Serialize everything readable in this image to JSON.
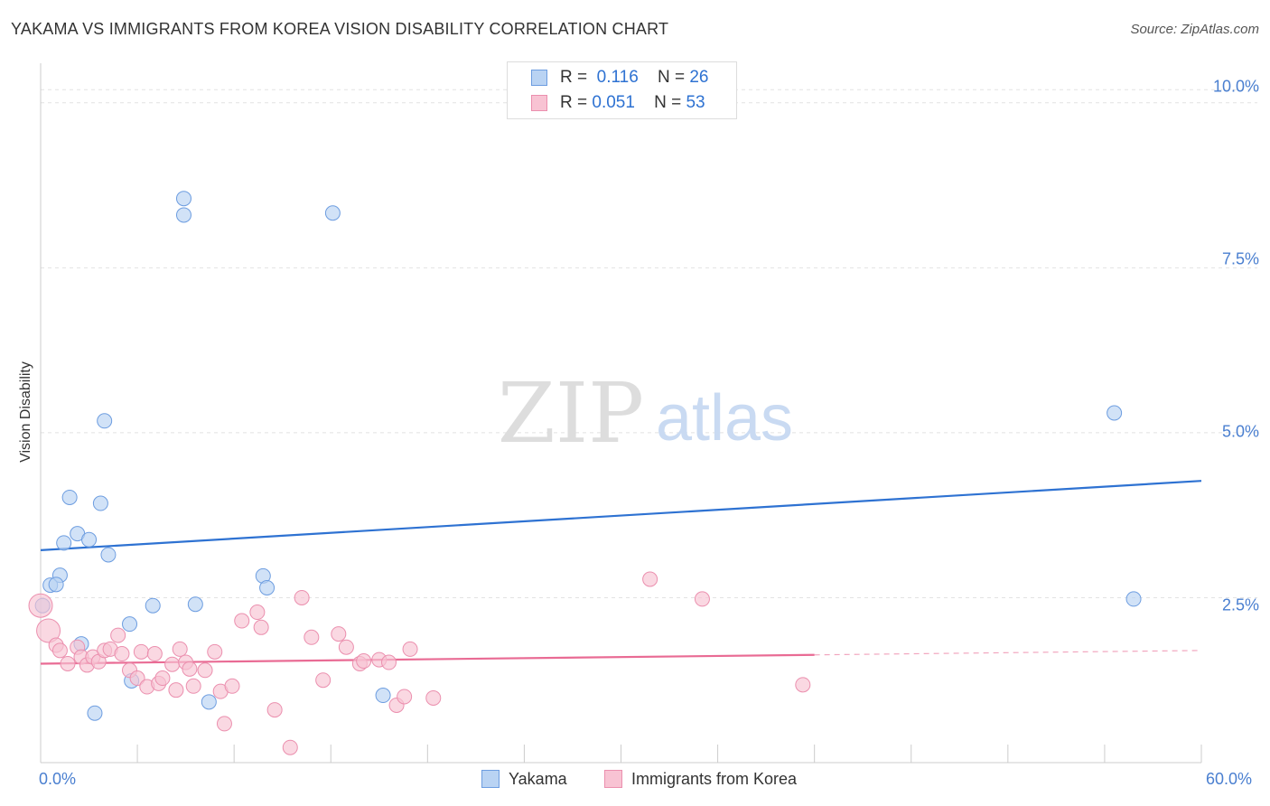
{
  "header": {
    "title": "YAKAMA VS IMMIGRANTS FROM KOREA VISION DISABILITY CORRELATION CHART",
    "source": "Source: ZipAtlas.com"
  },
  "watermark": {
    "zip": "ZIP",
    "atlas": "atlas"
  },
  "legend": {
    "rows": [
      {
        "r_label": "R =",
        "r_value": "0.116",
        "n_label": "N =",
        "n_value": "26"
      },
      {
        "r_label": "R =",
        "r_value": "0.051",
        "n_label": "N =",
        "n_value": "53"
      }
    ]
  },
  "colors": {
    "yakama_fill": "#b9d3f3",
    "yakama_stroke": "#6d9de0",
    "yakama_line": "#2e72d2",
    "korea_fill": "#f8c3d3",
    "korea_stroke": "#eb8fae",
    "korea_line": "#e96b94"
  },
  "chart_data": {
    "type": "scatter",
    "title": "YAKAMA VS IMMIGRANTS FROM KOREA VISION DISABILITY CORRELATION CHART",
    "xlabel": "",
    "ylabel": "Vision Disability",
    "xlim": [
      0,
      60
    ],
    "ylim": [
      0,
      10.6
    ],
    "x_tick_labels": [
      "0.0%",
      "60.0%"
    ],
    "y_ticks": [
      2.5,
      5.0,
      7.5,
      10.0
    ],
    "y_tick_labels": [
      "2.5%",
      "5.0%",
      "7.5%",
      "10.0%"
    ],
    "grid": true,
    "legend_position": "top-center",
    "series": [
      {
        "name": "Yakama",
        "r": 0.116,
        "n": 26,
        "trend": {
          "x0": 0,
          "y0": 3.22,
          "x1": 60,
          "y1": 4.27,
          "dashed_from": null
        },
        "points": [
          [
            7.4,
            8.55
          ],
          [
            7.4,
            8.3
          ],
          [
            15.1,
            8.33
          ],
          [
            3.3,
            5.18
          ],
          [
            55.5,
            5.3
          ],
          [
            1.5,
            4.02
          ],
          [
            3.1,
            3.93
          ],
          [
            1.9,
            3.47
          ],
          [
            1.2,
            3.33
          ],
          [
            2.5,
            3.38
          ],
          [
            3.5,
            3.15
          ],
          [
            1.0,
            2.84
          ],
          [
            11.5,
            2.83
          ],
          [
            0.5,
            2.69
          ],
          [
            0.8,
            2.7
          ],
          [
            11.7,
            2.65
          ],
          [
            56.5,
            2.48
          ],
          [
            0.1,
            2.38
          ],
          [
            5.8,
            2.38
          ],
          [
            8.0,
            2.4
          ],
          [
            4.6,
            2.1
          ],
          [
            2.1,
            1.8
          ],
          [
            4.7,
            1.24
          ],
          [
            8.7,
            0.92
          ],
          [
            17.7,
            1.02
          ],
          [
            2.8,
            0.75
          ]
        ]
      },
      {
        "name": "Immigrants from Korea",
        "r": 0.051,
        "n": 53,
        "trend": {
          "x0": 0,
          "y0": 1.5,
          "x1": 60,
          "y1": 1.7,
          "dashed_from": 40
        },
        "points": [
          [
            0.0,
            2.38
          ],
          [
            0.4,
            2.0
          ],
          [
            0.8,
            1.78
          ],
          [
            1.0,
            1.7
          ],
          [
            1.4,
            1.5
          ],
          [
            1.9,
            1.75
          ],
          [
            2.1,
            1.6
          ],
          [
            2.4,
            1.48
          ],
          [
            2.7,
            1.6
          ],
          [
            3.0,
            1.53
          ],
          [
            3.3,
            1.7
          ],
          [
            3.6,
            1.72
          ],
          [
            4.0,
            1.93
          ],
          [
            4.2,
            1.65
          ],
          [
            4.6,
            1.4
          ],
          [
            5.0,
            1.28
          ],
          [
            5.2,
            1.68
          ],
          [
            5.5,
            1.15
          ],
          [
            5.9,
            1.65
          ],
          [
            6.1,
            1.2
          ],
          [
            6.3,
            1.28
          ],
          [
            6.8,
            1.49
          ],
          [
            7.0,
            1.1
          ],
          [
            7.2,
            1.72
          ],
          [
            7.5,
            1.52
          ],
          [
            7.7,
            1.42
          ],
          [
            7.9,
            1.16
          ],
          [
            8.5,
            1.4
          ],
          [
            9.0,
            1.68
          ],
          [
            9.3,
            1.08
          ],
          [
            9.5,
            0.59
          ],
          [
            9.9,
            1.16
          ],
          [
            10.4,
            2.15
          ],
          [
            11.2,
            2.28
          ],
          [
            11.4,
            2.05
          ],
          [
            12.1,
            0.8
          ],
          [
            12.9,
            0.23
          ],
          [
            13.5,
            2.5
          ],
          [
            14.0,
            1.9
          ],
          [
            14.6,
            1.25
          ],
          [
            15.4,
            1.95
          ],
          [
            15.8,
            1.75
          ],
          [
            16.5,
            1.5
          ],
          [
            16.7,
            1.54
          ],
          [
            17.5,
            1.56
          ],
          [
            18.0,
            1.52
          ],
          [
            18.4,
            0.87
          ],
          [
            18.8,
            1.0
          ],
          [
            19.1,
            1.72
          ],
          [
            20.3,
            0.98
          ],
          [
            31.5,
            2.78
          ],
          [
            39.4,
            1.18
          ],
          [
            34.2,
            2.48
          ]
        ]
      }
    ]
  },
  "bottom_legend": {
    "items": [
      {
        "label": "Yakama"
      },
      {
        "label": "Immigrants from Korea"
      }
    ]
  }
}
